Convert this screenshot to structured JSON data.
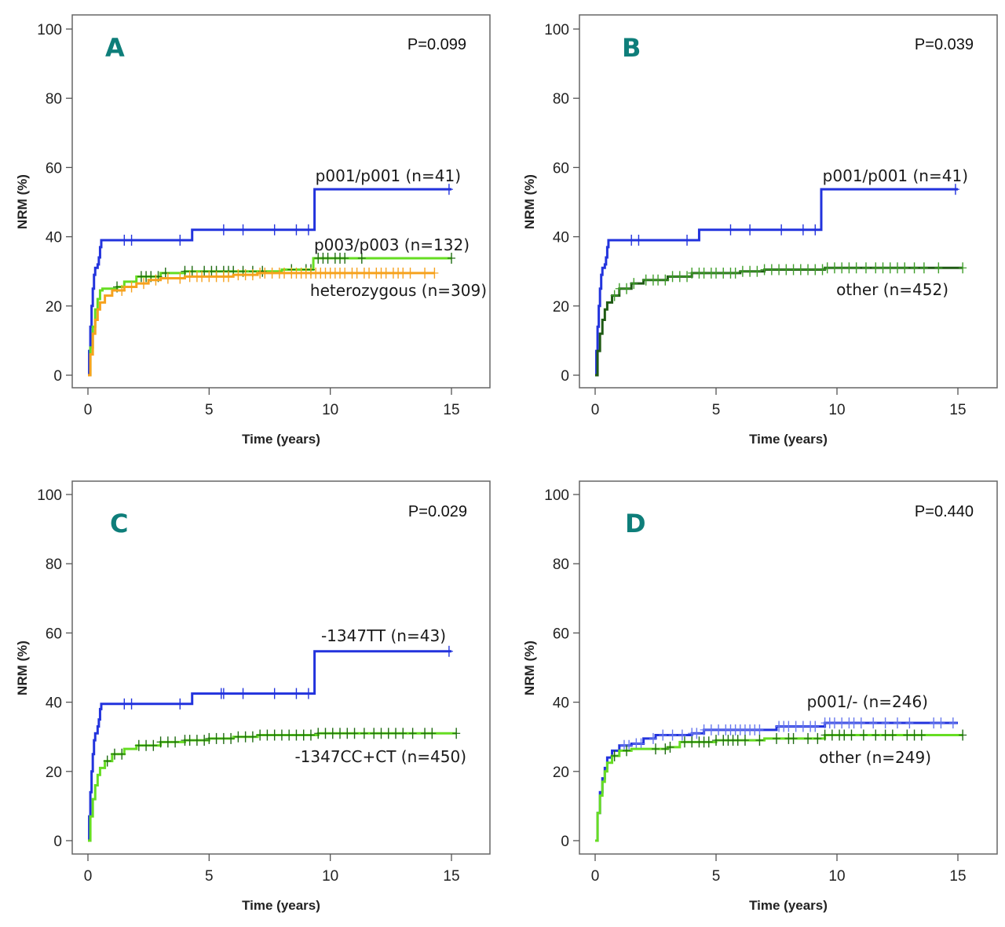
{
  "chart_data": [
    {
      "type": "line",
      "panel": "A",
      "p_value": "P=0.099",
      "xlabel": "Time (years)",
      "ylabel": "NRM (%)",
      "xlim": [
        0,
        16
      ],
      "ylim": [
        0,
        100
      ],
      "xticks": [
        "0",
        "5",
        "10",
        "15"
      ],
      "yticks": [
        "0",
        "20",
        "40",
        "60",
        "80",
        "100"
      ],
      "series": [
        {
          "name": "p001/p001 (n=41)",
          "color": "#2233dd",
          "step": [
            [
              0,
              0
            ],
            [
              0.05,
              7
            ],
            [
              0.1,
              14
            ],
            [
              0.15,
              20
            ],
            [
              0.2,
              25
            ],
            [
              0.25,
              29
            ],
            [
              0.3,
              31
            ],
            [
              0.4,
              32
            ],
            [
              0.45,
              34
            ],
            [
              0.5,
              37
            ],
            [
              0.55,
              39
            ],
            [
              4.3,
              39
            ],
            [
              4.3,
              42
            ],
            [
              9.35,
              42
            ],
            [
              9.35,
              53.7
            ],
            [
              15,
              53.7
            ]
          ],
          "censor": [
            1.5,
            1.8,
            3.8,
            5.6,
            6.4,
            7.7,
            8.6,
            9.1,
            14.9
          ]
        },
        {
          "name": "p003/p003 (n=132)",
          "color": "#66dd22",
          "step": [
            [
              0,
              0
            ],
            [
              0.1,
              8
            ],
            [
              0.2,
              14
            ],
            [
              0.3,
              19
            ],
            [
              0.4,
              22
            ],
            [
              0.5,
              24.5
            ],
            [
              0.6,
              25
            ],
            [
              1.2,
              25.5
            ],
            [
              1.5,
              27
            ],
            [
              2,
              28.5
            ],
            [
              3,
              29.5
            ],
            [
              4,
              30
            ],
            [
              6,
              30
            ],
            [
              8,
              30.5
            ],
            [
              9.3,
              30.5
            ],
            [
              9.3,
              33.8
            ],
            [
              15,
              33.8
            ]
          ],
          "censor": [
            1.2,
            2.2,
            2.4,
            2.6,
            2.9,
            3.2,
            4.0,
            4.3,
            4.8,
            5.1,
            5.3,
            5.6,
            5.8,
            6.0,
            6.4,
            6.8,
            7.2,
            8.4,
            9.0,
            9.2,
            9.5,
            9.7,
            9.9,
            10.2,
            10.4,
            10.6,
            11.3,
            15.0
          ],
          "censor_color": "#1f6b12"
        },
        {
          "name": "heterozygous (n=309)",
          "color": "#f6a21e",
          "step": [
            [
              0,
              0
            ],
            [
              0.1,
              6
            ],
            [
              0.2,
              12
            ],
            [
              0.3,
              16
            ],
            [
              0.4,
              19
            ],
            [
              0.5,
              21
            ],
            [
              0.7,
              23
            ],
            [
              1,
              24.5
            ],
            [
              1.5,
              25.5
            ],
            [
              2,
              26.5
            ],
            [
              2.5,
              27.5
            ],
            [
              3,
              28
            ],
            [
              4,
              28.5
            ],
            [
              5,
              28.5
            ],
            [
              6,
              29
            ],
            [
              7,
              29.5
            ],
            [
              14.3,
              29.5
            ]
          ],
          "censor": [
            1.4,
            1.8,
            2.3,
            2.8,
            3.3,
            3.8,
            4.2,
            4.5,
            4.7,
            5.0,
            5.3,
            5.6,
            5.8,
            6.2,
            6.5,
            6.8,
            7.1,
            7.3,
            7.6,
            7.9,
            8.1,
            8.4,
            8.6,
            8.8,
            9.0,
            9.2,
            9.4,
            9.6,
            9.8,
            10.0,
            10.2,
            10.4,
            10.6,
            10.9,
            11.1,
            11.4,
            11.6,
            11.9,
            12.1,
            12.3,
            12.6,
            12.8,
            13.0,
            13.3,
            13.9,
            14.3
          ],
          "censor_color": "#f6a21e"
        }
      ],
      "labels": [
        {
          "text": "p001/p001 (n=41)"
        },
        {
          "text": "p003/p003 (n=132)"
        },
        {
          "text": "heterozygous (n=309)"
        }
      ]
    },
    {
      "type": "line",
      "panel": "B",
      "p_value": "P=0.039",
      "xlabel": "Time (years)",
      "ylabel": "NRM (%)",
      "xlim": [
        0,
        16
      ],
      "ylim": [
        0,
        100
      ],
      "xticks": [
        "0",
        "5",
        "10",
        "15"
      ],
      "yticks": [
        "0",
        "20",
        "40",
        "60",
        "80",
        "100"
      ],
      "series": [
        {
          "name": "p001/p001 (n=41)",
          "color": "#2233dd",
          "step": [
            [
              0,
              0
            ],
            [
              0.05,
              7
            ],
            [
              0.1,
              14
            ],
            [
              0.15,
              20
            ],
            [
              0.2,
              25
            ],
            [
              0.25,
              29
            ],
            [
              0.3,
              31
            ],
            [
              0.4,
              32
            ],
            [
              0.45,
              34
            ],
            [
              0.5,
              37
            ],
            [
              0.55,
              39
            ],
            [
              4.3,
              39
            ],
            [
              4.3,
              42
            ],
            [
              9.35,
              42
            ],
            [
              9.35,
              53.7
            ],
            [
              15,
              53.7
            ]
          ],
          "censor": [
            1.5,
            1.8,
            3.8,
            5.6,
            6.4,
            7.7,
            8.6,
            9.1,
            14.9
          ]
        },
        {
          "name": "other (n=452)",
          "color": "#1f5a14",
          "step": [
            [
              0,
              0
            ],
            [
              0.1,
              7
            ],
            [
              0.2,
              12
            ],
            [
              0.3,
              16
            ],
            [
              0.4,
              19
            ],
            [
              0.5,
              21
            ],
            [
              0.7,
              23
            ],
            [
              1,
              25
            ],
            [
              1.5,
              26.5
            ],
            [
              2,
              27.5
            ],
            [
              3,
              28.5
            ],
            [
              4,
              29.5
            ],
            [
              5,
              29.5
            ],
            [
              6,
              30
            ],
            [
              7,
              30.5
            ],
            [
              9.3,
              30.5
            ],
            [
              9.5,
              31
            ],
            [
              15.2,
              31
            ]
          ],
          "censor": [
            0.8,
            1.0,
            1.3,
            1.6,
            2.1,
            2.4,
            2.6,
            2.9,
            3.2,
            3.5,
            3.8,
            4.0,
            4.3,
            4.5,
            4.8,
            5.0,
            5.3,
            5.6,
            5.8,
            6.1,
            6.4,
            6.7,
            7.0,
            7.3,
            7.6,
            7.9,
            8.2,
            8.5,
            8.8,
            9.1,
            9.4,
            9.6,
            9.9,
            10.2,
            10.5,
            10.8,
            11.2,
            11.6,
            11.9,
            12.2,
            12.5,
            12.8,
            13.2,
            13.6,
            14.2,
            15.2
          ],
          "censor_color": "#3f9e2a"
        }
      ],
      "labels": [
        {
          "text": "p001/p001 (n=41)"
        },
        {
          "text": "other (n=452)"
        }
      ]
    },
    {
      "type": "line",
      "panel": "C",
      "p_value": "P=0.029",
      "xlabel": "Time (years)",
      "ylabel": "NRM (%)",
      "xlim": [
        0,
        16
      ],
      "ylim": [
        0,
        100
      ],
      "xticks": [
        "0",
        "5",
        "10",
        "15"
      ],
      "yticks": [
        "0",
        "20",
        "40",
        "60",
        "80",
        "100"
      ],
      "series": [
        {
          "name": "-1347TT (n=43)",
          "color": "#2233dd",
          "step": [
            [
              0,
              0
            ],
            [
              0.05,
              7
            ],
            [
              0.1,
              14
            ],
            [
              0.15,
              20
            ],
            [
              0.2,
              25
            ],
            [
              0.25,
              29
            ],
            [
              0.3,
              31
            ],
            [
              0.4,
              33
            ],
            [
              0.45,
              35
            ],
            [
              0.5,
              38
            ],
            [
              0.55,
              39.5
            ],
            [
              4.3,
              39.5
            ],
            [
              4.3,
              42.5
            ],
            [
              9.35,
              42.5
            ],
            [
              9.35,
              54.7
            ],
            [
              15,
              54.7
            ]
          ],
          "censor": [
            1.5,
            1.8,
            3.8,
            5.5,
            5.6,
            6.4,
            7.7,
            8.6,
            9.1,
            14.9
          ]
        },
        {
          "name": "-1347CC+CT (n=450)",
          "color": "#66dd22",
          "step": [
            [
              0,
              0
            ],
            [
              0.1,
              7
            ],
            [
              0.2,
              12
            ],
            [
              0.3,
              16
            ],
            [
              0.4,
              19
            ],
            [
              0.5,
              21
            ],
            [
              0.7,
              23
            ],
            [
              1,
              25
            ],
            [
              1.5,
              26.5
            ],
            [
              2,
              27.5
            ],
            [
              3,
              28.5
            ],
            [
              4,
              29
            ],
            [
              5,
              29.5
            ],
            [
              6,
              30
            ],
            [
              7,
              30.5
            ],
            [
              9.3,
              30.5
            ],
            [
              9.5,
              31
            ],
            [
              15.2,
              31
            ]
          ],
          "censor": [
            0.8,
            1.1,
            1.4,
            2.1,
            2.4,
            2.7,
            3.0,
            3.3,
            3.6,
            4.0,
            4.2,
            4.5,
            4.8,
            5.0,
            5.3,
            5.6,
            5.9,
            6.2,
            6.5,
            6.8,
            7.1,
            7.4,
            7.7,
            8.0,
            8.3,
            8.6,
            8.9,
            9.2,
            9.5,
            9.8,
            10.1,
            10.4,
            10.7,
            11.0,
            11.4,
            11.8,
            12.1,
            12.4,
            12.7,
            13.0,
            13.4,
            13.9,
            14.2,
            15.2
          ],
          "censor_color": "#1f6b12"
        }
      ],
      "labels": [
        {
          "text": "-1347TT (n=43)"
        },
        {
          "text": "-1347CC+CT (n=450)"
        }
      ]
    },
    {
      "type": "line",
      "panel": "D",
      "p_value": "P=0.440",
      "xlabel": "Time (years)",
      "ylabel": "NRM (%)",
      "xlim": [
        0,
        16
      ],
      "ylim": [
        0,
        100
      ],
      "xticks": [
        "0",
        "5",
        "10",
        "15"
      ],
      "yticks": [
        "0",
        "20",
        "40",
        "60",
        "80",
        "100"
      ],
      "series": [
        {
          "name": "p001/- (n=246)",
          "color": "#2233dd",
          "step": [
            [
              0,
              0
            ],
            [
              0.1,
              8
            ],
            [
              0.2,
              14
            ],
            [
              0.3,
              18
            ],
            [
              0.4,
              21
            ],
            [
              0.5,
              24
            ],
            [
              0.7,
              26
            ],
            [
              1,
              27.5
            ],
            [
              1.5,
              28
            ],
            [
              2,
              29.5
            ],
            [
              2.5,
              30.5
            ],
            [
              3,
              30.5
            ],
            [
              4,
              31
            ],
            [
              4.5,
              32
            ],
            [
              7,
              32
            ],
            [
              7.5,
              33
            ],
            [
              9.3,
              33
            ],
            [
              9.5,
              34
            ],
            [
              15,
              34
            ]
          ],
          "censor": [
            1.2,
            1.4,
            1.7,
            1.9,
            2.4,
            2.8,
            3.2,
            3.6,
            4.0,
            4.2,
            4.5,
            4.8,
            5.1,
            5.4,
            5.6,
            5.8,
            6.0,
            6.2,
            6.4,
            6.6,
            6.8,
            7.6,
            7.8,
            8.0,
            8.3,
            8.6,
            8.9,
            9.1,
            9.5,
            9.7,
            9.9,
            10.2,
            10.5,
            10.7,
            11.0,
            11.5,
            12.0,
            12.5,
            13.0,
            14.0,
            14.3,
            14.8
          ],
          "censor_color": "#6677ee"
        },
        {
          "name": "other (n=249)",
          "color": "#66dd22",
          "step": [
            [
              0,
              0
            ],
            [
              0.1,
              8
            ],
            [
              0.2,
              13
            ],
            [
              0.3,
              17
            ],
            [
              0.4,
              20
            ],
            [
              0.5,
              22.5
            ],
            [
              0.7,
              24.5
            ],
            [
              1,
              26
            ],
            [
              1.5,
              26.5
            ],
            [
              3,
              27
            ],
            [
              3.5,
              28.5
            ],
            [
              5,
              29
            ],
            [
              7,
              29.5
            ],
            [
              9.3,
              29.5
            ],
            [
              9.5,
              30.5
            ],
            [
              15.2,
              30.5
            ]
          ],
          "censor": [
            0.8,
            1.3,
            2.5,
            2.9,
            3.1,
            3.7,
            4.0,
            4.3,
            4.5,
            4.7,
            5.0,
            5.3,
            5.5,
            5.7,
            5.9,
            6.2,
            6.8,
            7.5,
            8.0,
            8.2,
            8.8,
            9.2,
            9.5,
            9.8,
            10.1,
            10.3,
            10.6,
            11.1,
            11.6,
            12.0,
            12.3,
            12.9,
            13.2,
            13.5,
            15.2
          ],
          "censor_color": "#1f6b12"
        }
      ],
      "labels": [
        {
          "text": "p001/- (n=246)"
        },
        {
          "text": "other (n=249)"
        }
      ]
    }
  ]
}
